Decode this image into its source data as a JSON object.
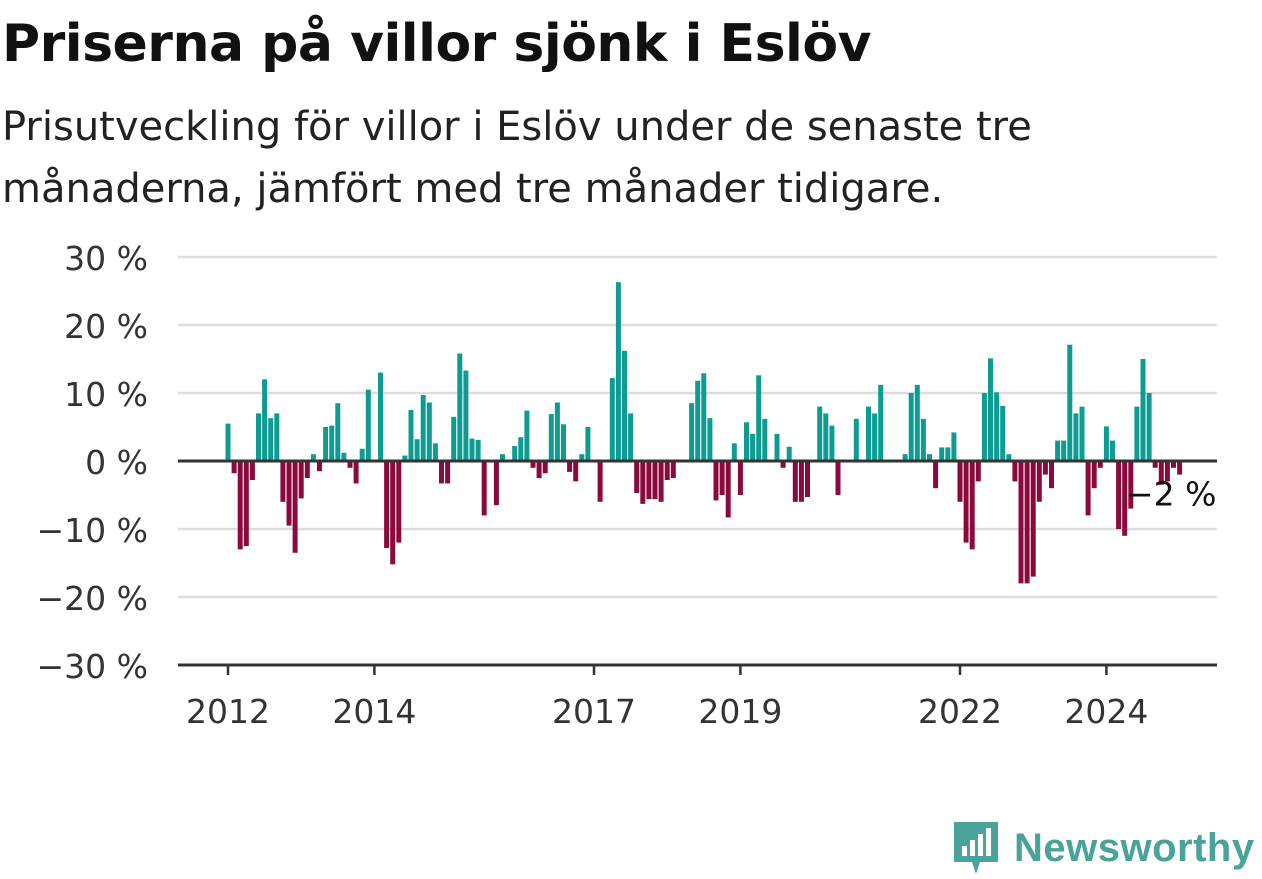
{
  "title": "Priserna på villor sjönk i Eslöv",
  "subtitle": "Prisutveckling för villor i Eslöv under de senaste tre månaderna, jämfört med tre månader tidigare.",
  "brand": "Newsworthy",
  "colors": {
    "positive": "#0e9c92",
    "negative": "#8b0a3e",
    "grid": "#dcdcdc",
    "axis": "#333333",
    "brand": "#4aa39b"
  },
  "chart_data": {
    "type": "bar",
    "ylim": [
      -30,
      30
    ],
    "y_ticks": [
      30,
      20,
      10,
      0,
      -10,
      -20,
      -30
    ],
    "y_tick_labels": [
      "30 %",
      "20 %",
      "10 %",
      "0 %",
      "−10 %",
      "−20 %",
      "−30 %"
    ],
    "x_ticks": [
      "2012",
      "2014",
      "2017",
      "2019",
      "2022",
      "2024"
    ],
    "grid": true,
    "series": [
      {
        "values": [
          5.5,
          -1.8,
          -13,
          -12.5,
          -2.8,
          7,
          12,
          6.3,
          7,
          -6,
          -9.5,
          -13.5,
          -5.5,
          -2.5,
          1,
          -1.5,
          5,
          5.2,
          8.5,
          1.2,
          -1,
          -3.3,
          1.8,
          10.5,
          0,
          13,
          -12.8,
          -15.2,
          -12,
          0.8,
          7.5,
          3.2,
          9.7,
          8.6,
          2.6,
          -3.3,
          -3.3,
          6.5,
          15.8,
          13.3,
          3.3,
          3.1,
          -8,
          0,
          -6.5,
          1,
          0,
          2.2,
          3.5,
          7.4,
          -1,
          -2.5,
          -1.8,
          6.9,
          8.6,
          5.4,
          -1.6,
          -3,
          1,
          5,
          0,
          -6,
          0,
          12.2,
          26.3,
          16.2,
          7,
          -4.7,
          -6.3,
          -5.6,
          -5.6,
          -6,
          -2.8,
          -2.5,
          0,
          0,
          8.5,
          11.8,
          12.9,
          6.3,
          -5.8,
          -5,
          -8.3,
          2.6,
          -5,
          5.7,
          4,
          12.6,
          6.2,
          0,
          4,
          -1,
          2.1,
          -6,
          -6,
          -5.3,
          0,
          8,
          7,
          5.2,
          -5,
          0,
          0,
          6.2,
          0,
          8,
          7,
          11.2,
          0,
          0,
          0,
          1,
          10,
          11.2,
          6.2,
          1,
          -4,
          2,
          2,
          4.2,
          -6,
          -12,
          -13,
          -3,
          10,
          15.1,
          10.1,
          8.1,
          1,
          -3,
          -18,
          -18,
          -17,
          -6,
          -2,
          -4,
          3,
          3,
          17.1,
          7,
          8,
          -8,
          -4,
          -1,
          5.1,
          3,
          -10,
          -11,
          -7,
          8,
          15,
          10,
          -1,
          -3.5,
          -3,
          -1,
          -2
        ],
        "last_label": "−2 %"
      }
    ]
  }
}
